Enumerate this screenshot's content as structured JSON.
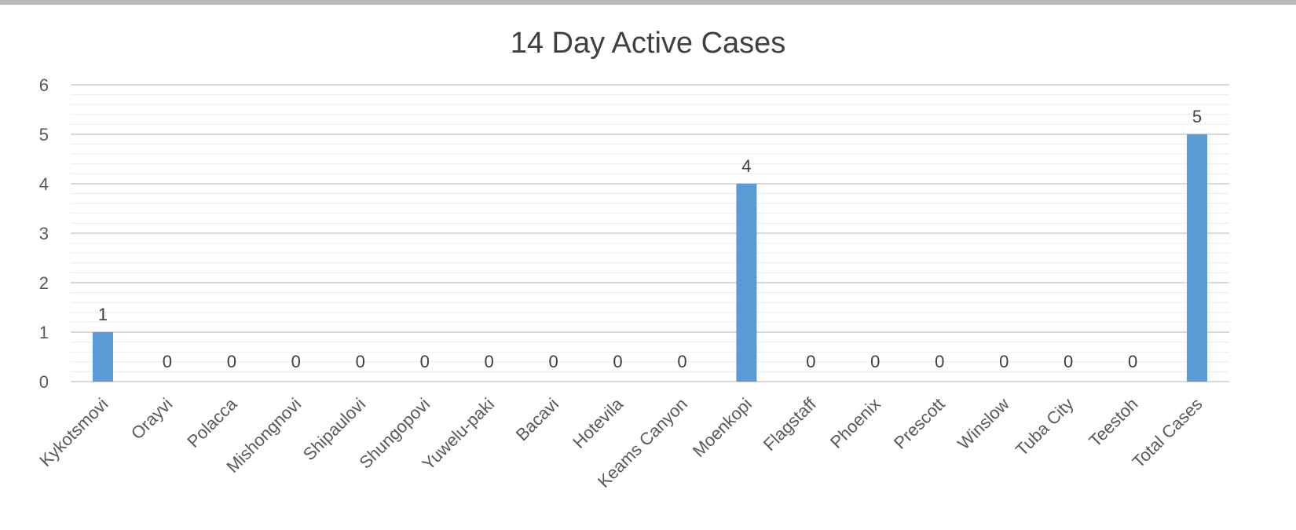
{
  "chart_data": {
    "type": "bar",
    "title": "14 Day Active Cases",
    "xlabel": "",
    "ylabel": "",
    "categories": [
      "Kykotsmovi",
      "Orayvi",
      "Polacca",
      "Mishongnovi",
      "Shipaulovi",
      "Shungopovi",
      "Yuwelu-paki",
      "Bacavi",
      "Hotevila",
      "Keams Canyon",
      "Moenkopi",
      "Flagstaff",
      "Phoenix",
      "Prescott",
      "Winslow",
      "Tuba City",
      "Teestoh",
      "Total Cases"
    ],
    "values": [
      1,
      0,
      0,
      0,
      0,
      0,
      0,
      0,
      0,
      0,
      4,
      0,
      0,
      0,
      0,
      0,
      0,
      5
    ],
    "ylim": [
      0,
      6
    ],
    "yticks": [
      0,
      1,
      2,
      3,
      4,
      5,
      6
    ],
    "grid": true,
    "minor_grid": true,
    "legend": "none",
    "data_labels": true,
    "colors": {
      "bar": "#5b9bd5",
      "major_grid": "#d9d9d9",
      "minor_grid": "#ececec",
      "text": "#595959",
      "title": "#404040"
    }
  }
}
